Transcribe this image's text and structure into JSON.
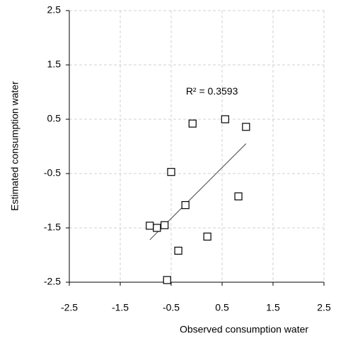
{
  "chart_data": {
    "type": "scatter",
    "x_label": "Observed consumption water",
    "y_label": "Estimated consumption water",
    "annotation": {
      "text": "R² = 0.3593",
      "x": 0.3,
      "y": 1.0
    },
    "x": [
      -0.92,
      -0.78,
      -0.63,
      -0.5,
      -0.58,
      -0.36,
      -0.22,
      -0.08,
      0.21,
      0.56,
      0.82,
      0.97
    ],
    "y": [
      -1.46,
      -1.5,
      -1.45,
      -0.47,
      -2.46,
      -1.92,
      -1.08,
      0.42,
      -1.66,
      0.5,
      -0.92,
      0.36
    ],
    "marker_color": "#000000",
    "trendline": {
      "x": [
        -0.92,
        0.97
      ],
      "y": [
        -1.72,
        0.05
      ],
      "color": "#444444"
    },
    "xlim": [
      -2.5,
      2.5
    ],
    "ylim": [
      -2.5,
      2.5
    ],
    "xticks": [
      -2.5,
      -1.5,
      -0.5,
      0.5,
      1.5,
      2.5
    ],
    "yticks": [
      -2.5,
      -1.5,
      -0.5,
      0.5,
      1.5,
      2.5
    ],
    "grid": true
  }
}
